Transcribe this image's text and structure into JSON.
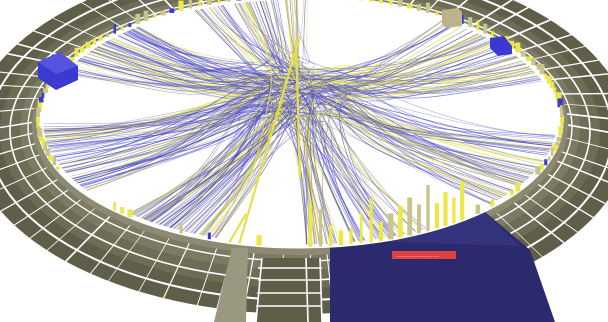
{
  "visualization": {
    "kind": "3d hierarchical edge bundling",
    "colors": {
      "background": "#ffffff",
      "ring_dark": "#5f5e48",
      "ring_mid": "#7b7a62",
      "ring_light": "#9a9880",
      "separator": "#ffffff",
      "edge_blue": "#4a46c8",
      "edge_yellow": "#e4e04a",
      "edge_gray": "#8a8a8a",
      "bar_yellow": "#ece84a",
      "bar_khaki": "#c9c58a",
      "bar_blue": "#3a3ad0",
      "selected_sector": "#2b2a6e",
      "tooltip_bg": "#e0413e"
    },
    "tooltip": {
      "text": "..........................."
    }
  }
}
